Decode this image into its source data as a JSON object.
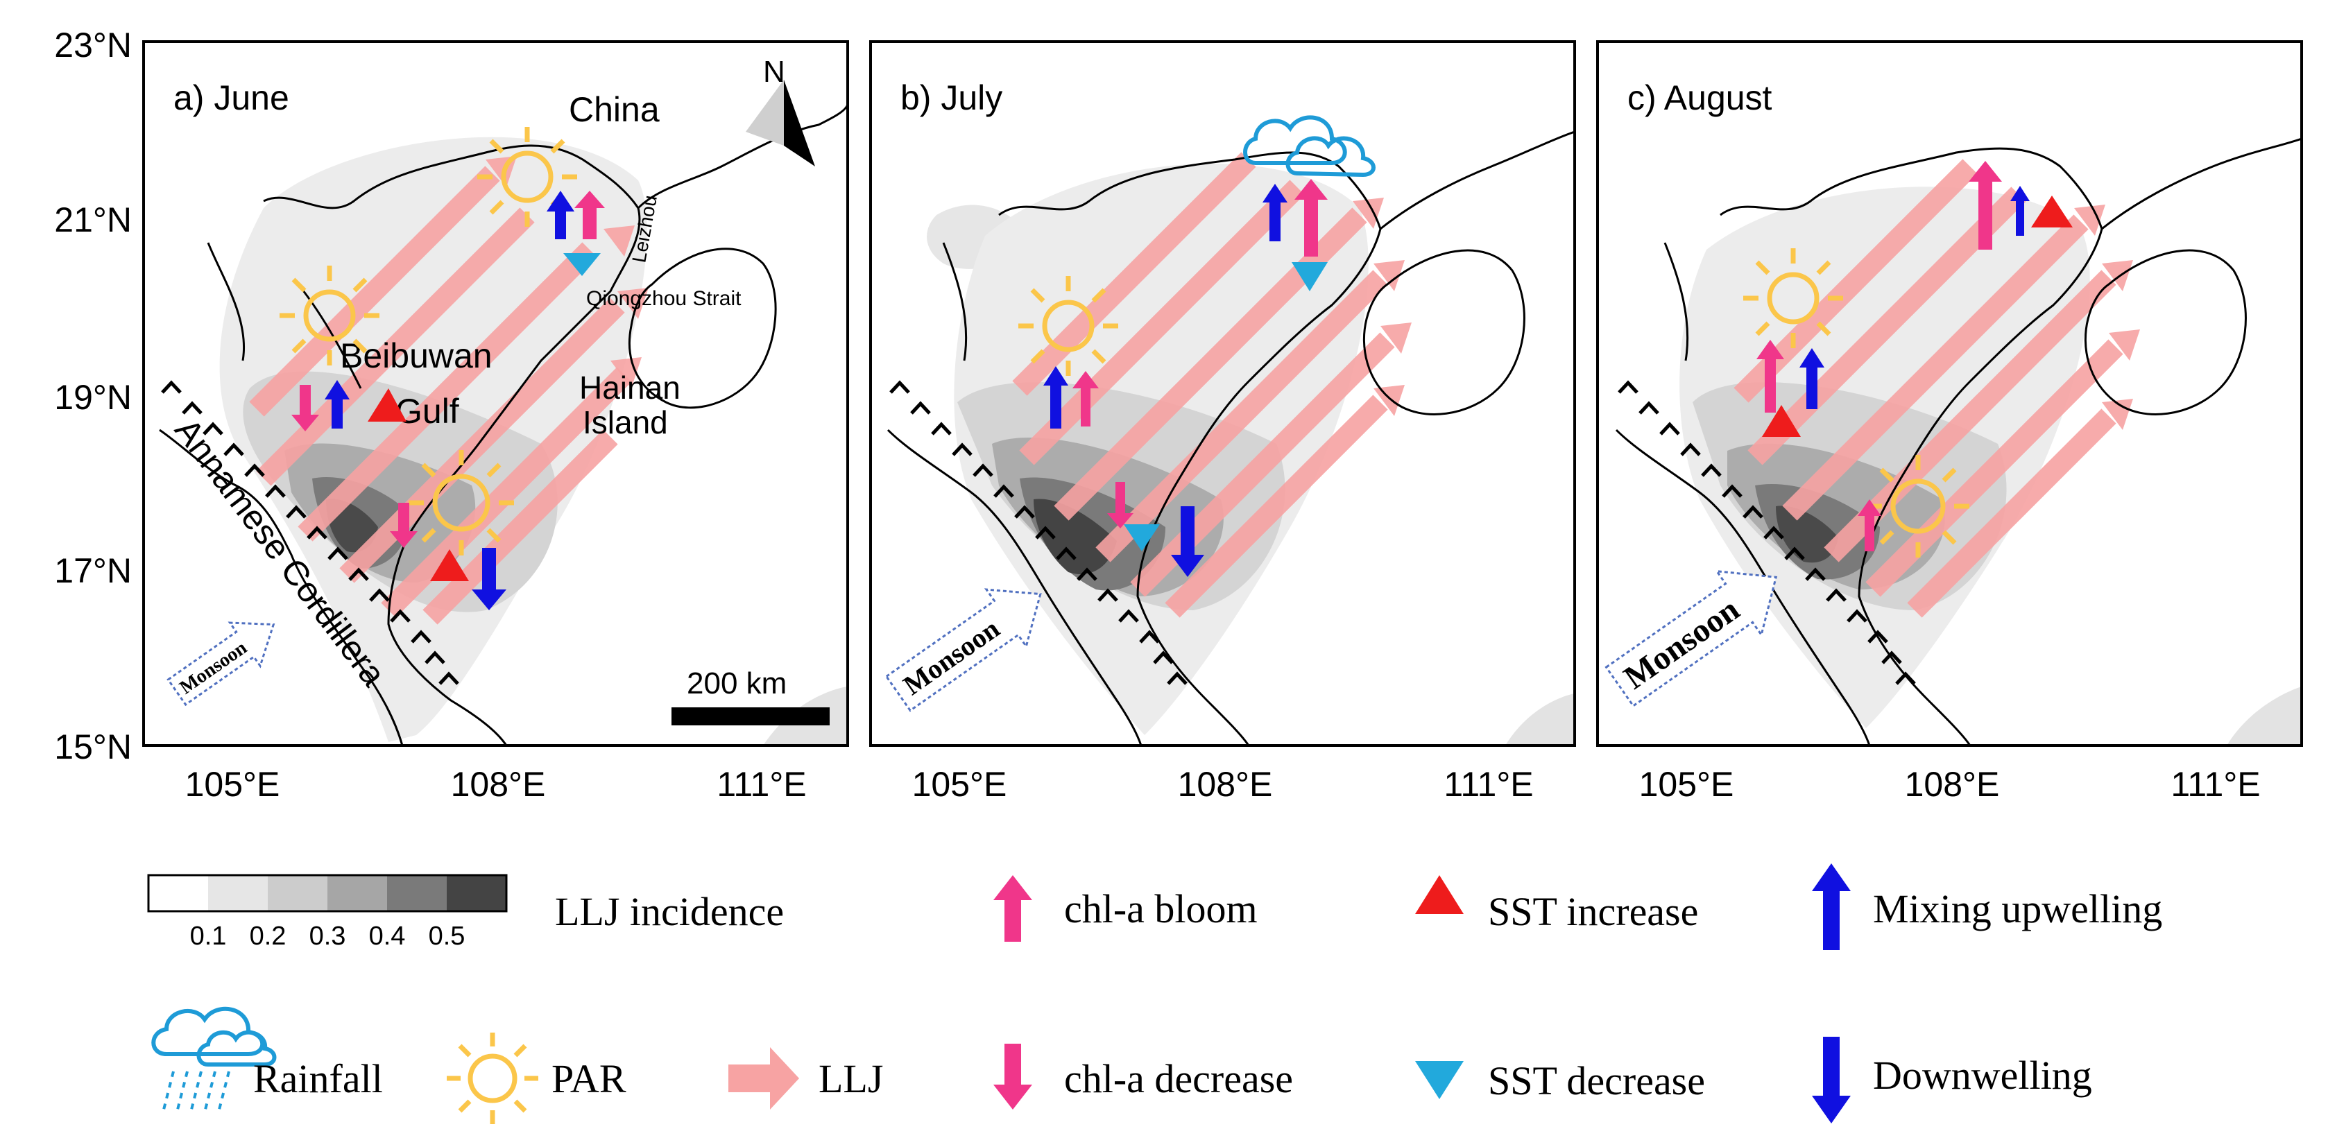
{
  "panels": [
    {
      "label": "a) June",
      "monsoon_label": "Monsoon",
      "mountain_label": "Annamese Cordillera",
      "place_labels": {
        "china": "China",
        "beibuwan": "Beibuwan",
        "gulf": "Gulf",
        "hainan": "Hainan",
        "island": "Island",
        "leizhou": "Leizhou",
        "strait": "Qiongzhou Strait"
      },
      "scalebar_label": "200 km",
      "north_label": "N"
    },
    {
      "label": "b) July",
      "monsoon_label": "Monsoon"
    },
    {
      "label": "c) August",
      "monsoon_label": "Monsoon"
    }
  ],
  "axes": {
    "y_ticks": [
      "23°N",
      "21°N",
      "19°N",
      "17°N",
      "15°N"
    ],
    "x_ticks": [
      "105°E",
      "108°E",
      "111°E"
    ]
  },
  "legend": {
    "colorbar_ticks": [
      "0.1",
      "0.2",
      "0.3",
      "0.4",
      "0.5"
    ],
    "colorbar_colors": [
      "#ffffff",
      "#e6e6e6",
      "#cccccc",
      "#a6a6a6",
      "#7a7a7a",
      "#444444"
    ],
    "llj_incidence": "LLJ incidence",
    "chl_bloom": "chl-a bloom",
    "chl_decrease": "chl-a decrease",
    "sst_increase": "SST increase",
    "sst_decrease": "SST decrease",
    "mixing_upwelling": "Mixing upwelling",
    "downwelling": "Downwelling",
    "rainfall": "Rainfall",
    "par": "PAR",
    "llj": "LLJ"
  },
  "colors": {
    "llj": "#f7a3a3",
    "chl": "#f0368a",
    "sst_up": "#ee1c1c",
    "sst_down": "#22a9dc",
    "mixing": "#1010e0",
    "sun": "#fbc64a",
    "rain": "#1e9bd7"
  }
}
